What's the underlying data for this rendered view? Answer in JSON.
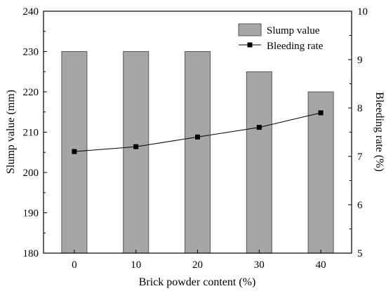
{
  "chart_data": {
    "type": "bar",
    "categories": [
      "0",
      "10",
      "20",
      "30",
      "40"
    ],
    "series": [
      {
        "name": "Slump value",
        "type": "bar",
        "axis": "left",
        "values": [
          230,
          230,
          230,
          225,
          220
        ],
        "color": "#a6a6a6"
      },
      {
        "name": "Bleeding rate",
        "type": "line",
        "axis": "right",
        "values": [
          7.1,
          7.2,
          7.4,
          7.6,
          7.9
        ],
        "color": "#000000"
      }
    ],
    "xlabel": "Brick powder content (%)",
    "ylabel": "Slump value (mm)",
    "y2label": "Bleeding rate (%)",
    "ylim": [
      180,
      240
    ],
    "y2lim": [
      5,
      10
    ],
    "yticks": [
      "180",
      "190",
      "200",
      "210",
      "220",
      "230",
      "240"
    ],
    "y2ticks": [
      "5",
      "6",
      "7",
      "8",
      "9",
      "10"
    ],
    "legend_position": "top-right",
    "grid": false
  }
}
